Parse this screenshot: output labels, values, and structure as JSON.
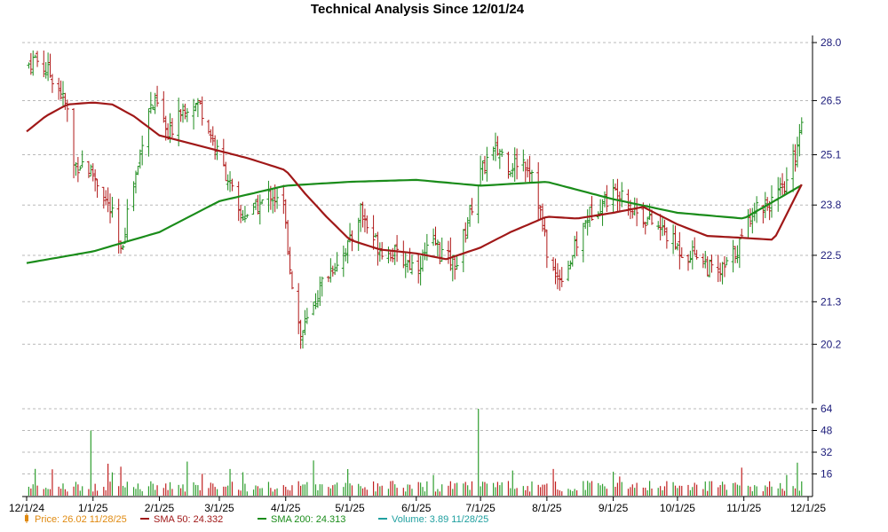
{
  "colors": {
    "up": "#1e8c1e",
    "down": "#b01818",
    "sma50": "#a01818",
    "sma200": "#1a8c1a",
    "volume_up": "#2e9e2e",
    "volume_down": "#c02020",
    "price_legend": "#e08a10",
    "sma50_legend": "#a01818",
    "sma200_legend": "#1a8c1a",
    "volume_legend": "#20a0a0",
    "ytick": "#1a1a7a"
  },
  "chart_data": {
    "type": "line",
    "title": "Technical Analysis Since 12/01/24",
    "x_ticks": [
      "12/1/24",
      "1/1/25",
      "2/1/25",
      "3/1/25",
      "4/1/25",
      "5/1/25",
      "6/1/25",
      "7/1/25",
      "8/1/25",
      "9/1/25",
      "10/1/25",
      "11/1/25",
      "12/1/25"
    ],
    "price_axis": {
      "ticks": [
        "20.2",
        "21.3",
        "22.5",
        "23.8",
        "25.1",
        "26.5",
        "28.0"
      ],
      "ylim": [
        18.9,
        28.0
      ]
    },
    "volume_axis": {
      "ticks": [
        "16",
        "32",
        "48",
        "64"
      ],
      "ylim": [
        0,
        64
      ]
    },
    "legend": [
      {
        "label": "Price: 26.02  11/28/25",
        "icon": "candlestick-icon",
        "color": "#e08a10"
      },
      {
        "label": "SMA 50: 24.332",
        "icon": "line-icon",
        "color": "#a01818"
      },
      {
        "label": "SMA 200: 24.313",
        "icon": "line-icon",
        "color": "#1a8c1a"
      },
      {
        "label": "Volume: 3.89  11/28/25",
        "icon": "line-icon",
        "color": "#20a0a0"
      }
    ],
    "price_close_series": {
      "name": "Price",
      "points": [
        [
          "12/1/24",
          27.4
        ],
        [
          "12/5/24",
          27.6
        ],
        [
          "12/10/24",
          27.3
        ],
        [
          "12/15/24",
          27.0
        ],
        [
          "12/20/24",
          26.2
        ],
        [
          "12/23/24",
          24.8
        ],
        [
          "12/27/24",
          24.9
        ],
        [
          "1/1/25",
          24.6
        ],
        [
          "1/5/25",
          24.2
        ],
        [
          "1/10/25",
          23.5
        ],
        [
          "1/14/25",
          22.5
        ],
        [
          "1/18/25",
          24.0
        ],
        [
          "1/22/25",
          24.8
        ],
        [
          "1/26/25",
          26.3
        ],
        [
          "2/1/25",
          26.4
        ],
        [
          "2/5/25",
          25.5
        ],
        [
          "2/10/25",
          26.3
        ],
        [
          "2/15/25",
          26.4
        ],
        [
          "2/20/25",
          26.4
        ],
        [
          "2/25/25",
          25.6
        ],
        [
          "3/1/25",
          25.0
        ],
        [
          "3/5/25",
          24.5
        ],
        [
          "3/10/25",
          23.5
        ],
        [
          "3/15/25",
          23.6
        ],
        [
          "3/20/25",
          23.8
        ],
        [
          "3/25/25",
          24.1
        ],
        [
          "3/31/25",
          23.7
        ],
        [
          "4/4/25",
          21.8
        ],
        [
          "4/8/25",
          20.4
        ],
        [
          "4/12/25",
          20.9
        ],
        [
          "4/18/25",
          21.8
        ],
        [
          "4/24/25",
          22.3
        ],
        [
          "5/1/25",
          22.8
        ],
        [
          "5/6/25",
          23.7
        ],
        [
          "5/10/25",
          23.1
        ],
        [
          "5/15/25",
          22.7
        ],
        [
          "5/20/25",
          22.6
        ],
        [
          "5/25/25",
          22.4
        ],
        [
          "6/1/25",
          22.2
        ],
        [
          "6/6/25",
          22.6
        ],
        [
          "6/10/25",
          22.8
        ],
        [
          "6/15/25",
          22.4
        ],
        [
          "6/20/25",
          22.3
        ],
        [
          "6/25/25",
          23.4
        ],
        [
          "7/1/25",
          24.6
        ],
        [
          "7/5/25",
          25.1
        ],
        [
          "7/10/25",
          25.2
        ],
        [
          "7/15/25",
          24.8
        ],
        [
          "7/20/25",
          25.0
        ],
        [
          "7/25/25",
          24.7
        ],
        [
          "7/28/25",
          23.9
        ],
        [
          "8/1/25",
          22.6
        ],
        [
          "8/5/25",
          21.9
        ],
        [
          "8/10/25",
          22.1
        ],
        [
          "8/15/25",
          22.8
        ],
        [
          "8/20/25",
          23.5
        ],
        [
          "8/25/25",
          23.8
        ],
        [
          "9/1/25",
          24.1
        ],
        [
          "9/5/25",
          24.2
        ],
        [
          "9/10/25",
          23.7
        ],
        [
          "9/15/25",
          23.5
        ],
        [
          "9/20/25",
          23.3
        ],
        [
          "9/25/25",
          23.1
        ],
        [
          "10/1/25",
          22.7
        ],
        [
          "10/5/25",
          22.5
        ],
        [
          "10/10/25",
          22.6
        ],
        [
          "10/15/25",
          22.2
        ],
        [
          "10/20/25",
          22.0
        ],
        [
          "10/25/25",
          22.3
        ],
        [
          "11/1/25",
          23.0
        ],
        [
          "11/5/25",
          23.7
        ],
        [
          "11/10/25",
          23.8
        ],
        [
          "11/15/25",
          23.9
        ],
        [
          "11/20/25",
          24.2
        ],
        [
          "11/25/25",
          25.1
        ],
        [
          "11/28/25",
          26.02
        ]
      ]
    },
    "sma50_series": {
      "name": "SMA 50",
      "points": [
        [
          "12/1/24",
          25.7
        ],
        [
          "12/10/24",
          26.1
        ],
        [
          "12/20/24",
          26.4
        ],
        [
          "1/1/25",
          26.45
        ],
        [
          "1/10/25",
          26.4
        ],
        [
          "1/20/25",
          26.1
        ],
        [
          "2/1/25",
          25.6
        ],
        [
          "2/15/25",
          25.4
        ],
        [
          "3/1/25",
          25.2
        ],
        [
          "3/15/25",
          25.0
        ],
        [
          "4/1/25",
          24.7
        ],
        [
          "4/10/25",
          24.1
        ],
        [
          "4/20/25",
          23.5
        ],
        [
          "5/1/25",
          22.9
        ],
        [
          "5/15/25",
          22.65
        ],
        [
          "6/1/25",
          22.55
        ],
        [
          "6/15/25",
          22.4
        ],
        [
          "7/1/25",
          22.7
        ],
        [
          "7/15/25",
          23.1
        ],
        [
          "8/1/25",
          23.5
        ],
        [
          "8/15/25",
          23.45
        ],
        [
          "9/1/25",
          23.6
        ],
        [
          "9/15/25",
          23.75
        ],
        [
          "10/1/25",
          23.3
        ],
        [
          "10/15/25",
          23.0
        ],
        [
          "11/1/25",
          22.95
        ],
        [
          "11/15/25",
          22.9
        ],
        [
          "11/28/25",
          24.332
        ]
      ]
    },
    "sma200_series": {
      "name": "SMA 200",
      "points": [
        [
          "12/1/24",
          22.3
        ],
        [
          "1/1/25",
          22.6
        ],
        [
          "2/1/25",
          23.1
        ],
        [
          "3/1/25",
          23.9
        ],
        [
          "4/1/25",
          24.3
        ],
        [
          "5/1/25",
          24.4
        ],
        [
          "6/1/25",
          24.45
        ],
        [
          "7/1/25",
          24.3
        ],
        [
          "8/1/25",
          24.4
        ],
        [
          "9/1/25",
          23.95
        ],
        [
          "10/1/25",
          23.6
        ],
        [
          "11/1/25",
          23.45
        ],
        [
          "11/28/25",
          24.313
        ]
      ]
    },
    "volume_note": "Last volume 3.89 on 11/28/25; spikes near 1/1/25 (~48) and 7/1/25 (~64)"
  }
}
